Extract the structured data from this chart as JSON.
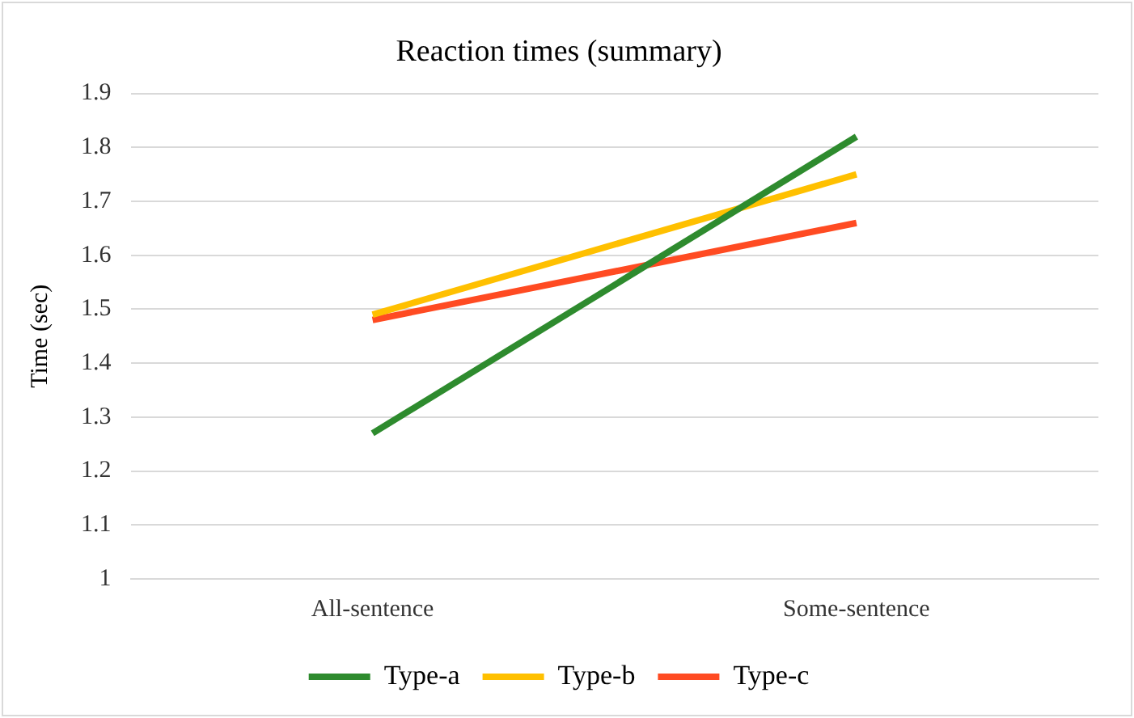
{
  "chart_data": {
    "type": "line",
    "title": "Reaction times (summary)",
    "ylabel": "Time (sec)",
    "categories": [
      "All-sentence",
      "Some-sentence"
    ],
    "series": [
      {
        "name": "Type-a",
        "color": "#2e8b2e",
        "values": [
          1.27,
          1.82
        ]
      },
      {
        "name": "Type-b",
        "color": "#ffc000",
        "values": [
          1.49,
          1.75
        ]
      },
      {
        "name": "Type-c",
        "color": "#ff4b22",
        "values": [
          1.48,
          1.66
        ]
      }
    ],
    "ylim": [
      1,
      1.9
    ],
    "yticks": [
      1,
      1.1,
      1.2,
      1.3,
      1.4,
      1.5,
      1.6,
      1.7,
      1.8,
      1.9
    ],
    "grid": "y",
    "legend": "bottom",
    "marker": "none",
    "line_style": "solid"
  }
}
